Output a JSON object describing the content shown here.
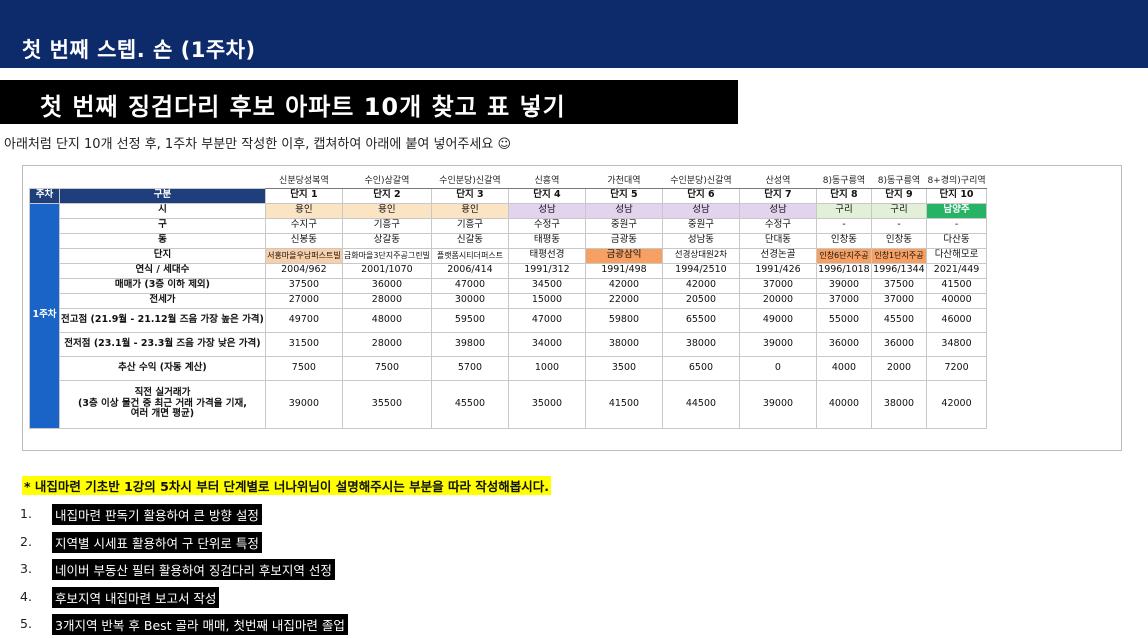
{
  "header": {
    "title": "첫 번째 스텝. 손 (1주차)",
    "bar_color": "#0d2a6b"
  },
  "subtitle": "첫 번째 징검다리 후보 아파트 10개 찾고 표 넣기",
  "instruction": "아래처럼 단지 10개 선정 후, 1주차 부분만 작성한 이후, 캡쳐하여 아래에 붙여 넣어주세요 ☺",
  "table": {
    "stations": [
      "신분당성복역",
      "수인)상갈역",
      "수인분당)신갈역",
      "신흥역",
      "가천대역",
      "수인분당)신갈역",
      "산성역",
      "8)동구릉역",
      "8)동구릉역",
      "8+경의)구리역"
    ],
    "week_label": "주차",
    "category_label": "구분",
    "week_value": "1주차",
    "danji_headers": [
      "단지 1",
      "단지 2",
      "단지 3",
      "단지 4",
      "단지 5",
      "단지 6",
      "단지 7",
      "단지 8",
      "단지 9",
      "단지 10"
    ],
    "rows": [
      {
        "label": "시",
        "values": [
          "용인",
          "용인",
          "용인",
          "성남",
          "성남",
          "성남",
          "성남",
          "구리",
          "구리",
          "남양주"
        ]
      },
      {
        "label": "구",
        "values": [
          "수지구",
          "기흥구",
          "기흥구",
          "수정구",
          "중원구",
          "중원구",
          "수정구",
          "-",
          "-",
          "-"
        ]
      },
      {
        "label": "동",
        "values": [
          "신봉동",
          "상갈동",
          "신갈동",
          "태평동",
          "금광동",
          "성남동",
          "단대동",
          "인창동",
          "인창동",
          "다산동"
        ]
      },
      {
        "label": "단지",
        "values": [
          "서홍마을우남퍼스트빌",
          "금화마을3단지주공그린빌",
          "플랫폼시티더퍼스트",
          "태평선경",
          "금광삼익",
          "선경상대원2차",
          "선경논골",
          "인창6단지주공",
          "인창1단지주공",
          "다산해모로"
        ]
      },
      {
        "label": "연식 / 세대수",
        "values": [
          "2004/962",
          "2001/1070",
          "2006/414",
          "1991/312",
          "1991/498",
          "1994/2510",
          "1991/426",
          "1996/1018",
          "1996/1344",
          "2021/449"
        ]
      },
      {
        "label": "매매가 (3층 이하 제외)",
        "values": [
          "37500",
          "36000",
          "47000",
          "34500",
          "42000",
          "42000",
          "37000",
          "39000",
          "37500",
          "41500"
        ]
      },
      {
        "label": "전세가",
        "values": [
          "27000",
          "28000",
          "30000",
          "15000",
          "22000",
          "20500",
          "20000",
          "37000",
          "37000",
          "40000"
        ]
      },
      {
        "label": "전고점 (21.9월 - 21.12월 즈음 가장 높은 가격)",
        "values": [
          "49700",
          "48000",
          "59500",
          "47000",
          "59800",
          "65500",
          "49000",
          "55000",
          "45500",
          "46000"
        ]
      },
      {
        "label": "전저점 (23.1월 - 23.3월 즈음 가장 낮은 가격)",
        "values": [
          "31500",
          "28000",
          "39800",
          "34000",
          "38000",
          "38000",
          "39000",
          "36000",
          "36000",
          "34800"
        ]
      },
      {
        "label": "추산 수익 (자동 계산)",
        "values": [
          "7500",
          "7500",
          "5700",
          "1000",
          "3500",
          "6500",
          "0",
          "4000",
          "2000",
          "7200"
        ]
      },
      {
        "label": "직전 실거래가\n(3층 이상 물건 중 최근 거래 가격을 기재,\n여러 개면 평균)",
        "values": [
          "39000",
          "35500",
          "45500",
          "35000",
          "41500",
          "44500",
          "39000",
          "40000",
          "38000",
          "42000"
        ]
      }
    ]
  },
  "section_title": "* 내집마련 기초반 1강의 5차시 부터 단계별로 너나위님이 설명해주시는 부분을 따라 작성해봅시다.",
  "steps": [
    {
      "num": "1.",
      "text": "내집마련 판독기 활용하여 큰 방향 설정"
    },
    {
      "num": "2.",
      "text": "지역별 시세표 활용하여 구 단위로 특정"
    },
    {
      "num": "3.",
      "text": "네이버 부동산 필터 활용하여 징검다리 후보지역 선정"
    },
    {
      "num": "4.",
      "text": "후보지역 내집마련 보고서 작성"
    },
    {
      "num": "5.",
      "text": "3개지역 반복 후 Best 골라 매매, 첫번째 내집마련 졸업"
    }
  ]
}
